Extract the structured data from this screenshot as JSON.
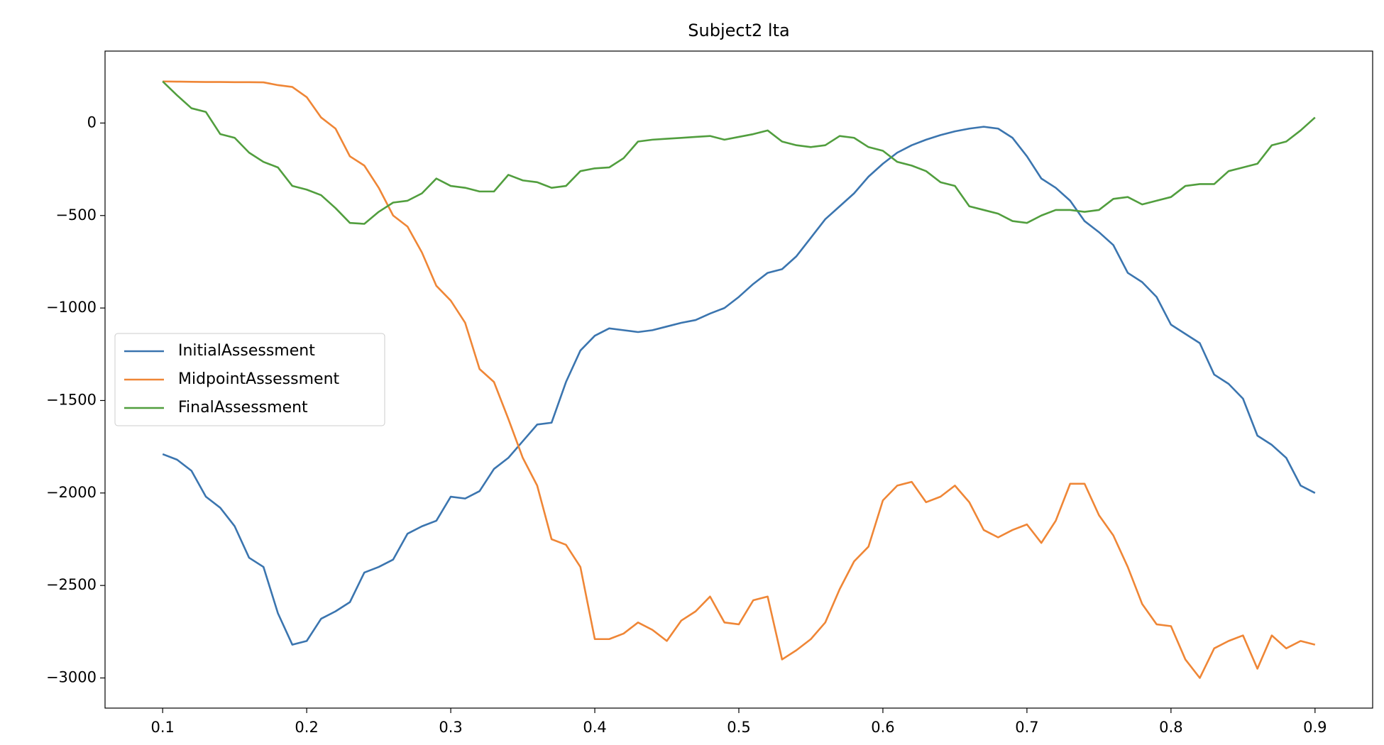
{
  "chart_data": {
    "type": "line",
    "title": "Subject2 lta",
    "x": [
      0.1,
      0.11,
      0.12,
      0.13,
      0.14,
      0.15,
      0.16,
      0.17,
      0.18,
      0.19,
      0.2,
      0.21,
      0.22,
      0.23,
      0.24,
      0.25,
      0.26,
      0.27,
      0.28,
      0.29,
      0.3,
      0.31,
      0.32,
      0.33,
      0.34,
      0.35,
      0.36,
      0.37,
      0.38,
      0.39,
      0.4,
      0.41,
      0.42,
      0.43,
      0.44,
      0.45,
      0.46,
      0.47,
      0.48,
      0.49,
      0.5,
      0.51,
      0.52,
      0.53,
      0.54,
      0.55,
      0.56,
      0.57,
      0.58,
      0.59,
      0.6,
      0.61,
      0.62,
      0.63,
      0.64,
      0.65,
      0.66,
      0.67,
      0.68,
      0.69,
      0.7,
      0.71,
      0.72,
      0.73,
      0.74,
      0.75,
      0.76,
      0.77,
      0.78,
      0.79,
      0.8,
      0.81,
      0.82,
      0.83,
      0.84,
      0.85,
      0.86,
      0.87,
      0.88,
      0.89,
      0.9
    ],
    "series": [
      {
        "name": "InitialAssessment",
        "color": "#3b75af",
        "values": [
          -1790,
          -1820,
          -1880,
          -2020,
          -2080,
          -2180,
          -2350,
          -2400,
          -2650,
          -2820,
          -2800,
          -2680,
          -2640,
          -2590,
          -2430,
          -2400,
          -2360,
          -2220,
          -2180,
          -2150,
          -2020,
          -2030,
          -1990,
          -1870,
          -1810,
          -1720,
          -1630,
          -1620,
          -1400,
          -1230,
          -1150,
          -1110,
          -1120,
          -1130,
          -1120,
          -1100,
          -1080,
          -1065,
          -1030,
          -1000,
          -940,
          -870,
          -810,
          -790,
          -720,
          -620,
          -520,
          -450,
          -380,
          -290,
          -220,
          -160,
          -120,
          -90,
          -65,
          -45,
          -30,
          -20,
          -30,
          -80,
          -180,
          -300,
          -350,
          -420,
          -530,
          -590,
          -660,
          -810,
          -860,
          -940,
          -1090,
          -1140,
          -1190,
          -1360,
          -1410,
          -1490,
          -1690,
          -1740,
          -1810,
          -1960,
          -2000
        ]
      },
      {
        "name": "MidpointAssessment",
        "color": "#ef8636",
        "values": [
          225,
          224,
          223,
          222,
          222,
          221,
          221,
          220,
          205,
          195,
          140,
          30,
          -30,
          -180,
          -230,
          -350,
          -500,
          -560,
          -700,
          -880,
          -960,
          -1080,
          -1330,
          -1400,
          -1600,
          -1810,
          -1960,
          -2250,
          -2280,
          -2400,
          -2790,
          -2790,
          -2760,
          -2700,
          -2740,
          -2800,
          -2690,
          -2640,
          -2560,
          -2700,
          -2710,
          -2580,
          -2560,
          -2900,
          -2850,
          -2790,
          -2700,
          -2520,
          -2370,
          -2290,
          -2040,
          -1960,
          -1940,
          -2050,
          -2020,
          -1960,
          -2050,
          -2200,
          -2240,
          -2200,
          -2170,
          -2270,
          -2150,
          -1950,
          -1950,
          -2120,
          -2230,
          -2400,
          -2600,
          -2710,
          -2720,
          -2900,
          -3000,
          -2840,
          -2800,
          -2770,
          -2950,
          -2770,
          -2840,
          -2800,
          -2820
        ]
      },
      {
        "name": "FinalAssessment",
        "color": "#519e3e",
        "values": [
          225,
          150,
          80,
          60,
          -60,
          -80,
          -160,
          -210,
          -240,
          -340,
          -360,
          -390,
          -460,
          -540,
          -545,
          -480,
          -430,
          -420,
          -380,
          -300,
          -340,
          -350,
          -370,
          -370,
          -280,
          -310,
          -320,
          -350,
          -340,
          -260,
          -245,
          -240,
          -190,
          -100,
          -90,
          -85,
          -80,
          -75,
          -70,
          -90,
          -75,
          -60,
          -40,
          -100,
          -120,
          -130,
          -120,
          -70,
          -80,
          -130,
          -150,
          -210,
          -230,
          -260,
          -320,
          -340,
          -450,
          -470,
          -490,
          -530,
          -540,
          -500,
          -470,
          -470,
          -480,
          -470,
          -410,
          -400,
          -440,
          -420,
          -400,
          -340,
          -330,
          -330,
          -260,
          -240,
          -220,
          -120,
          -100,
          -40,
          30
        ]
      }
    ],
    "xlim": [
      0.06,
      0.94
    ],
    "xticks": [
      0.1,
      0.2,
      0.3,
      0.4,
      0.5,
      0.6,
      0.7,
      0.8,
      0.9
    ],
    "ylim": [
      -3163,
      389
    ],
    "yticks": [
      {
        "value": -3000,
        "label": "−3000"
      },
      {
        "value": -2500,
        "label": "−2500"
      },
      {
        "value": -2000,
        "label": "−2000"
      },
      {
        "value": -1500,
        "label": "−1500"
      },
      {
        "value": -1000,
        "label": "−1000"
      },
      {
        "value": -500,
        "label": "−500"
      },
      0
    ],
    "legend": "center left"
  }
}
